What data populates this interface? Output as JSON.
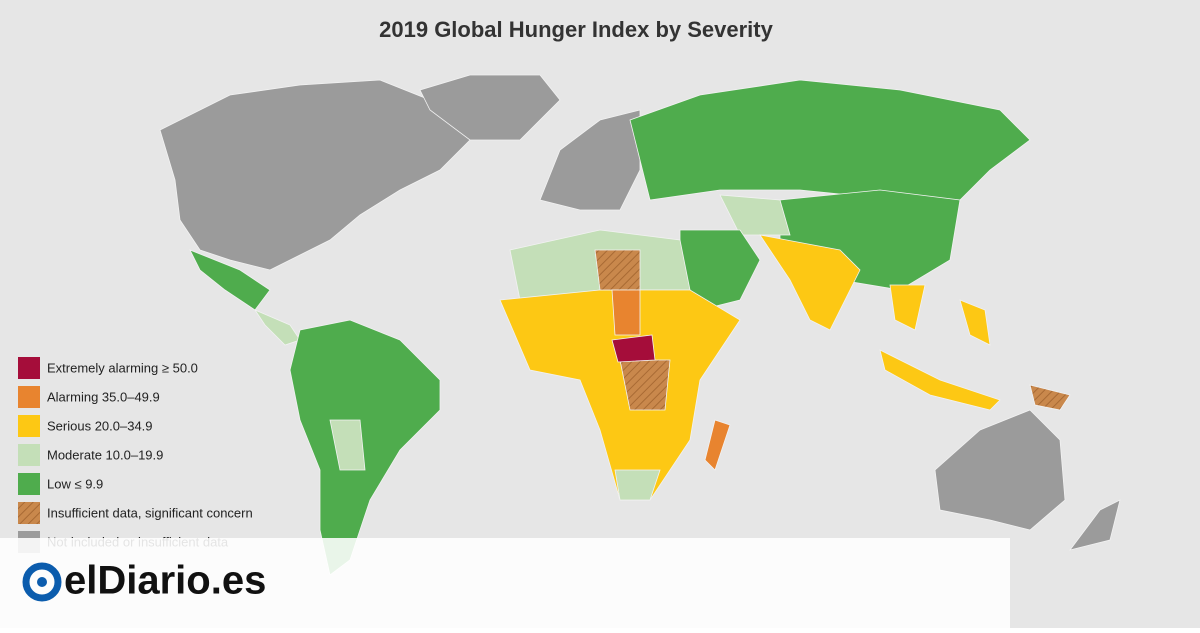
{
  "title": "2019 Global Hunger Index by Severity",
  "legend": [
    {
      "label": "Extremely alarming ≥ 50.0",
      "color": "#a50d3a"
    },
    {
      "label": "Alarming 35.0–49.9",
      "color": "#e8842f"
    },
    {
      "label": "Serious 20.0–34.9",
      "color": "#fdc814"
    },
    {
      "label": "Moderate 10.0–19.9",
      "color": "#c4dfb8"
    },
    {
      "label": "Low ≤ 9.9",
      "color": "#4fac4d"
    },
    {
      "label": "Insufficient data, significant concern",
      "color": "#c9884c",
      "hatch": true
    },
    {
      "label": "Not included or insufficient data",
      "color": "#9b9b9b"
    }
  ],
  "logo": {
    "text": "elDiario.es"
  }
}
